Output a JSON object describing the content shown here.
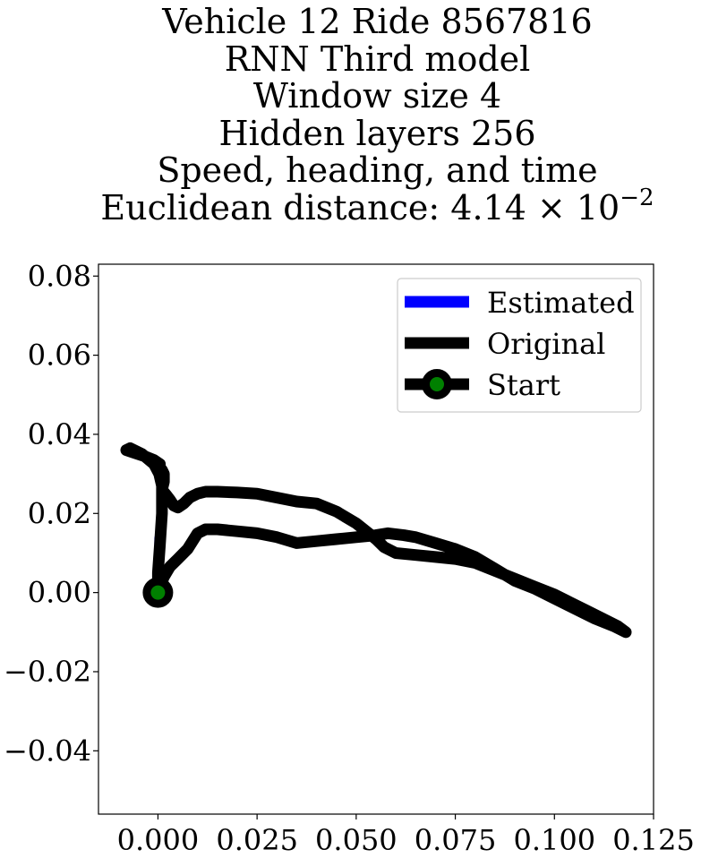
{
  "chart_data": {
    "type": "line",
    "title_lines": [
      "Vehicle 12 Ride 8567816",
      "RNN Third model",
      "Window size 4",
      "Hidden layers 256",
      "Speed, heading, and time"
    ],
    "title_metric_prefix": "Euclidean distance: 4.14 × 10",
    "title_metric_exponent": "−2",
    "xlim": [
      -0.015,
      0.125
    ],
    "ylim": [
      -0.056,
      0.083
    ],
    "x_ticks": [
      0.0,
      0.025,
      0.05,
      0.075,
      0.1,
      0.125
    ],
    "x_tick_labels": [
      "0.000",
      "0.025",
      "0.050",
      "0.075",
      "0.100",
      "0.125"
    ],
    "y_ticks": [
      -0.04,
      -0.02,
      0.0,
      0.02,
      0.04,
      0.06,
      0.08
    ],
    "y_tick_labels": [
      "−0.04",
      "−0.02",
      "0.00",
      "0.02",
      "0.04",
      "0.06",
      "0.08"
    ],
    "grid": false,
    "legend_position": "upper right",
    "series": [
      {
        "name": "Estimated",
        "color": "#0000ff",
        "x": [
          0.0,
          0.0,
          0.0007,
          0.0
        ],
        "y": [
          0.0,
          0.0138,
          0.006,
          0.0
        ]
      },
      {
        "name": "Original",
        "color": "#000000",
        "x": [
          0.0,
          0.0005,
          0.0015,
          0.003,
          0.005,
          0.0075,
          0.01,
          0.012,
          0.015,
          0.02,
          0.025,
          0.03,
          0.035,
          0.04,
          0.045,
          0.05,
          0.055,
          0.058,
          0.062,
          0.065,
          0.07,
          0.075,
          0.08,
          0.085,
          0.09,
          0.095,
          0.1,
          0.105,
          0.11,
          0.115,
          0.118,
          0.116,
          0.112,
          0.108,
          0.104,
          0.1,
          0.095,
          0.09,
          0.085,
          0.08,
          0.075,
          0.07,
          0.065,
          0.06,
          0.057,
          0.055,
          0.05,
          0.045,
          0.04,
          0.035,
          0.03,
          0.025,
          0.02,
          0.015,
          0.012,
          0.01,
          0.008,
          0.0065,
          0.005,
          0.004,
          0.003,
          0.002,
          0.001,
          0.0015,
          0.0015,
          0.001,
          0.0005,
          0.0005,
          -0.001,
          -0.0035,
          -0.0065,
          -0.008,
          -0.007,
          -0.004,
          -0.001,
          0.0003,
          0.001,
          0.001,
          0.0005,
          0.0,
          0.0
        ],
        "y": [
          0.0,
          0.0015,
          0.004,
          0.0065,
          0.0085,
          0.011,
          0.015,
          0.016,
          0.016,
          0.0155,
          0.015,
          0.014,
          0.0125,
          0.013,
          0.0135,
          0.014,
          0.0145,
          0.015,
          0.0145,
          0.014,
          0.0125,
          0.011,
          0.009,
          0.006,
          0.003,
          0.001,
          -0.0015,
          -0.004,
          -0.0065,
          -0.0085,
          -0.01,
          -0.0085,
          -0.0065,
          -0.0045,
          -0.0025,
          -0.0005,
          0.0015,
          0.0035,
          0.0055,
          0.0075,
          0.0085,
          0.009,
          0.0095,
          0.01,
          0.0115,
          0.0135,
          0.0175,
          0.0205,
          0.0225,
          0.023,
          0.024,
          0.025,
          0.0253,
          0.0255,
          0.0255,
          0.025,
          0.024,
          0.0225,
          0.0215,
          0.022,
          0.0235,
          0.0248,
          0.026,
          0.028,
          0.03,
          0.031,
          0.0315,
          0.0325,
          0.0335,
          0.0345,
          0.0355,
          0.036,
          0.0365,
          0.035,
          0.0325,
          0.03,
          0.027,
          0.02,
          0.012,
          0.005,
          0.0
        ]
      },
      {
        "name": "Start",
        "color": "#000000",
        "marker_face_color": "#008000",
        "x": [
          0.0
        ],
        "y": [
          0.0
        ]
      }
    ]
  }
}
